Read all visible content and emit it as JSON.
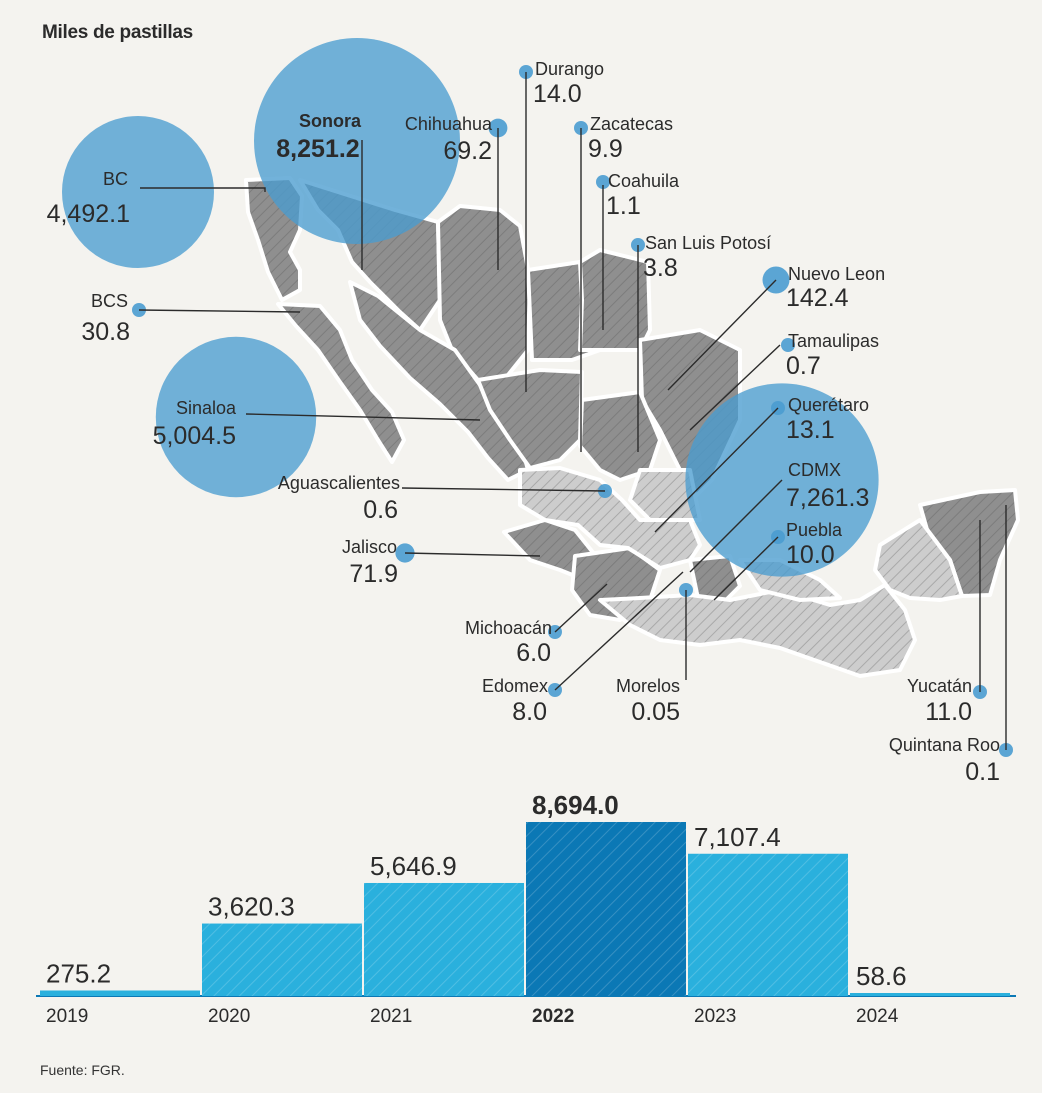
{
  "title": "Miles de pastillas",
  "source": "Fuente: FGR.",
  "colors": {
    "bubble": "#4a9cd0",
    "bar": "#2ab0dd",
    "bar_highlight": "#0b78b5",
    "state_dark": "#8f8f8f",
    "state_light": "#c9c9c9",
    "leader": "#2b2b2b"
  },
  "chart_data": [
    {
      "type": "bubble-map",
      "title": "Miles de pastillas",
      "highlight": "Sonora",
      "states": [
        {
          "name": "BC",
          "value": 4492.1,
          "label": "4,492.1"
        },
        {
          "name": "BCS",
          "value": 30.8,
          "label": "30.8"
        },
        {
          "name": "Sonora",
          "value": 8251.2,
          "label": "8,251.2"
        },
        {
          "name": "Chihuahua",
          "value": 69.2,
          "label": "69.2"
        },
        {
          "name": "Durango",
          "value": 14.0,
          "label": "14.0"
        },
        {
          "name": "Zacatecas",
          "value": 9.9,
          "label": "9.9"
        },
        {
          "name": "Coahuila",
          "value": 1.1,
          "label": "1.1"
        },
        {
          "name": "San Luis Potosí",
          "value": 3.8,
          "label": "3.8"
        },
        {
          "name": "Nuevo Leon",
          "value": 142.4,
          "label": "142.4"
        },
        {
          "name": "Tamaulipas",
          "value": 0.7,
          "label": "0.7"
        },
        {
          "name": "Querétaro",
          "value": 13.1,
          "label": "13.1"
        },
        {
          "name": "CDMX",
          "value": 7261.3,
          "label": "7,261.3"
        },
        {
          "name": "Puebla",
          "value": 10.0,
          "label": "10.0"
        },
        {
          "name": "Sinaloa",
          "value": 5004.5,
          "label": "5,004.5"
        },
        {
          "name": "Aguascalientes",
          "value": 0.6,
          "label": "0.6"
        },
        {
          "name": "Jalisco",
          "value": 71.9,
          "label": "71.9"
        },
        {
          "name": "Michoacán",
          "value": 6.0,
          "label": "6.0"
        },
        {
          "name": "Edomex",
          "value": 8.0,
          "label": "8.0"
        },
        {
          "name": "Morelos",
          "value": 0.05,
          "label": "0.05"
        },
        {
          "name": "Yucatán",
          "value": 11.0,
          "label": "11.0"
        },
        {
          "name": "Quintana Roo",
          "value": 0.1,
          "label": "0.1"
        }
      ]
    },
    {
      "type": "bar",
      "categories": [
        "2019",
        "2020",
        "2021",
        "2022",
        "2023",
        "2024"
      ],
      "values": [
        275.2,
        3620.3,
        5646.9,
        8694.0,
        7107.4,
        58.6
      ],
      "labels": [
        "275.2",
        "3,620.3",
        "5,646.9",
        "8,694.0",
        "7,107.4",
        "58.6"
      ],
      "highlight": "2022",
      "ylim": [
        0,
        8694.0
      ]
    }
  ]
}
